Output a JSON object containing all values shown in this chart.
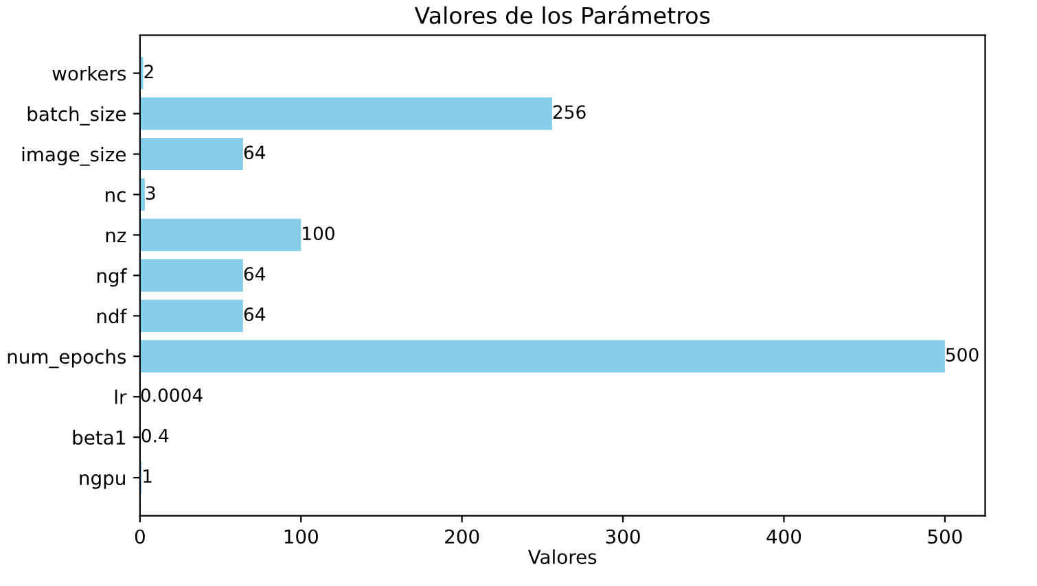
{
  "chart_data": {
    "type": "bar",
    "orientation": "horizontal",
    "title": "Valores de los Parámetros",
    "xlabel": "Valores",
    "categories": [
      "workers",
      "batch_size",
      "image_size",
      "nc",
      "nz",
      "ngf",
      "ndf",
      "num_epochs",
      "lr",
      "beta1",
      "ngpu"
    ],
    "values": [
      2,
      256,
      64,
      3,
      100,
      64,
      64,
      500,
      0.0004,
      0.4,
      1
    ],
    "color": "#87ceeb",
    "xlim": [
      0,
      525
    ],
    "xticks": [
      0,
      100,
      200,
      300,
      400,
      500
    ],
    "data_labels": true,
    "grid": false
  }
}
